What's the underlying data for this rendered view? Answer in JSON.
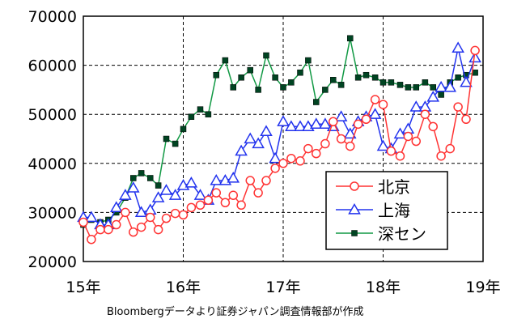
{
  "colors": {
    "beijing": "#ff3333",
    "shanghai": "#2233ee",
    "shenzhen": "#119944",
    "marker_shenzhen": "#004422"
  },
  "source_note": "Bloombergデータより証券ジャパン調査情報部が作成",
  "chart_data": {
    "type": "line",
    "title": "",
    "xlabel": "",
    "ylabel": "",
    "ylim": [
      20000,
      70000
    ],
    "xlim": [
      2015.0,
      2019.0
    ],
    "yticks": [
      20000,
      30000,
      40000,
      50000,
      60000,
      70000
    ],
    "xticks": [
      {
        "value": 2015,
        "label": "15年"
      },
      {
        "value": 2016,
        "label": "16年"
      },
      {
        "value": 2017,
        "label": "17年"
      },
      {
        "value": 2018,
        "label": "18年"
      },
      {
        "value": 2019,
        "label": "19年"
      }
    ],
    "grid": true,
    "legend_position": "bottom-right",
    "series": [
      {
        "name": "北京",
        "color": "#ff3333",
        "marker": "circle",
        "x": [
          2015.0,
          2015.08,
          2015.17,
          2015.25,
          2015.33,
          2015.42,
          2015.5,
          2015.58,
          2015.67,
          2015.75,
          2015.83,
          2015.92,
          2016.0,
          2016.08,
          2016.17,
          2016.25,
          2016.33,
          2016.42,
          2016.5,
          2016.58,
          2016.67,
          2016.75,
          2016.83,
          2016.92,
          2017.0,
          2017.08,
          2017.17,
          2017.25,
          2017.33,
          2017.42,
          2017.5,
          2017.58,
          2017.67,
          2017.75,
          2017.83,
          2017.92,
          2018.0,
          2018.08,
          2018.17,
          2018.25,
          2018.33,
          2018.42,
          2018.5,
          2018.58,
          2018.67,
          2018.75,
          2018.83,
          2018.92
        ],
        "values": [
          28000,
          24500,
          26500,
          26500,
          27500,
          30000,
          26000,
          27000,
          29000,
          26500,
          28800,
          29800,
          29500,
          31000,
          31500,
          32500,
          34000,
          32000,
          33500,
          31500,
          36500,
          34000,
          36500,
          39000,
          40000,
          41000,
          40500,
          43000,
          42000,
          44000,
          48500,
          45000,
          43500,
          48000,
          49000,
          53000,
          52000,
          42500,
          41500,
          45500,
          44500,
          50000,
          47500,
          41500,
          43000,
          51500,
          49000,
          63000
        ]
      },
      {
        "name": "上海",
        "color": "#2233ee",
        "marker": "triangle",
        "x": [
          2015.0,
          2015.08,
          2015.17,
          2015.25,
          2015.33,
          2015.42,
          2015.5,
          2015.58,
          2015.67,
          2015.75,
          2015.83,
          2015.92,
          2016.0,
          2016.08,
          2016.17,
          2016.25,
          2016.33,
          2016.42,
          2016.5,
          2016.58,
          2016.67,
          2016.75,
          2016.83,
          2016.92,
          2017.0,
          2017.08,
          2017.17,
          2017.25,
          2017.33,
          2017.42,
          2017.5,
          2017.58,
          2017.67,
          2017.75,
          2017.83,
          2017.92,
          2018.0,
          2018.08,
          2018.17,
          2018.25,
          2018.33,
          2018.42,
          2018.5,
          2018.58,
          2018.67,
          2018.75,
          2018.83,
          2018.92
        ],
        "values": [
          29000,
          29000,
          27500,
          27500,
          31000,
          33500,
          35000,
          30000,
          30500,
          33000,
          34500,
          33500,
          35500,
          36000,
          33500,
          32500,
          36500,
          36500,
          37000,
          42500,
          45000,
          44000,
          46500,
          41000,
          48500,
          47500,
          47500,
          47500,
          48000,
          48000,
          47500,
          49500,
          46000,
          48500,
          49500,
          50000,
          43500,
          43000,
          46000,
          47000,
          51500,
          51500,
          53500,
          55500,
          55500,
          63500,
          56500,
          61500
        ]
      },
      {
        "name": "深セン",
        "color": "#119944",
        "marker": "square",
        "x": [
          2015.0,
          2015.08,
          2015.17,
          2015.25,
          2015.33,
          2015.42,
          2015.5,
          2015.58,
          2015.67,
          2015.75,
          2015.83,
          2015.92,
          2016.0,
          2016.08,
          2016.17,
          2016.25,
          2016.33,
          2016.42,
          2016.5,
          2016.58,
          2016.67,
          2016.75,
          2016.83,
          2016.92,
          2017.0,
          2017.08,
          2017.17,
          2017.25,
          2017.33,
          2017.42,
          2017.5,
          2017.58,
          2017.67,
          2017.75,
          2017.83,
          2017.92,
          2018.0,
          2018.08,
          2018.17,
          2018.25,
          2018.33,
          2018.42,
          2018.5,
          2018.58,
          2018.67,
          2018.75,
          2018.83,
          2018.92
        ],
        "values": [
          27500,
          28500,
          28000,
          28500,
          30000,
          33000,
          37000,
          38000,
          37000,
          35500,
          45000,
          44000,
          47000,
          49500,
          51000,
          50000,
          58000,
          61000,
          55500,
          57500,
          59000,
          55000,
          62000,
          57500,
          55500,
          56500,
          58500,
          61000,
          52500,
          55000,
          57000,
          56000,
          65500,
          57500,
          58000,
          57500,
          56500,
          56500,
          56000,
          55500,
          55500,
          56500,
          55500,
          54000,
          56500,
          57500,
          58000,
          58500
        ]
      }
    ]
  }
}
